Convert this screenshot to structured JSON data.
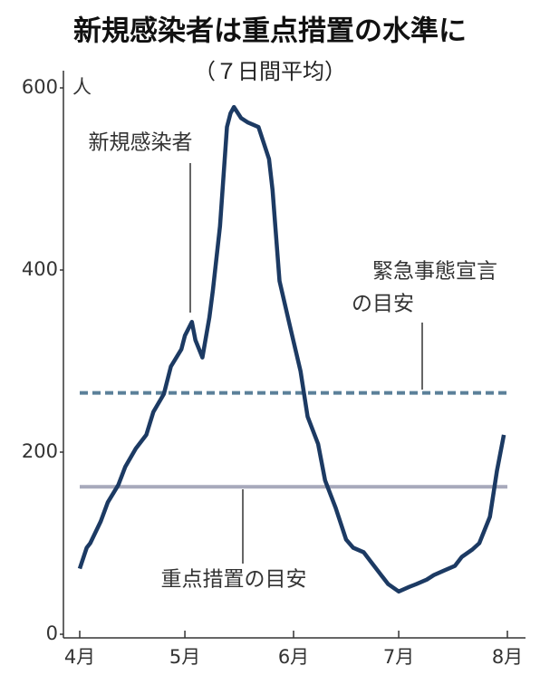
{
  "chart_data": {
    "type": "line",
    "title": "新規感染者は重点措置の水準に",
    "subtitle": "（７日間平均）",
    "y_unit": "人",
    "x": [
      0,
      2,
      3,
      6,
      8,
      11,
      13,
      16,
      19,
      21,
      24,
      26,
      29,
      30,
      32,
      33,
      35,
      37,
      38,
      40,
      42,
      43,
      44,
      46,
      48,
      51,
      54,
      55,
      57,
      60,
      63,
      65,
      68,
      70,
      73,
      76,
      78,
      81,
      83,
      86,
      88,
      91,
      94,
      96,
      99,
      101,
      104,
      107,
      109,
      112,
      114,
      117,
      119,
      121
    ],
    "series": [
      {
        "name": "新規感染者",
        "color": "#1c3a63",
        "values": [
          72,
          95,
          100,
          124,
          145,
          164,
          184,
          204,
          219,
          244,
          264,
          294,
          313,
          328,
          343,
          323,
          304,
          348,
          378,
          448,
          557,
          572,
          579,
          567,
          562,
          557,
          522,
          488,
          388,
          338,
          289,
          239,
          209,
          169,
          139,
          104,
          95,
          90,
          80,
          65,
          55,
          47,
          52,
          55,
          60,
          65,
          70,
          75,
          85,
          93,
          100,
          129,
          179,
          219
        ]
      }
    ],
    "reference_lines": [
      {
        "label_lines": [
          "緊急事態宣言",
          "の目安"
        ],
        "value": 265,
        "color": "#5b8099",
        "dashed": true
      },
      {
        "label_lines": [
          "重点措置の目安"
        ],
        "value": 162,
        "color": "#a7a9bb",
        "dashed": false
      }
    ],
    "xlim": [
      0,
      122
    ],
    "xticks": [
      {
        "value": 0,
        "label": "4月"
      },
      {
        "value": 30,
        "label": "5月"
      },
      {
        "value": 61,
        "label": "6月"
      },
      {
        "value": 91,
        "label": "7月"
      },
      {
        "value": 122,
        "label": "8月"
      }
    ],
    "ylim": [
      0,
      600
    ],
    "yticks": [
      0,
      200,
      400,
      600
    ]
  }
}
